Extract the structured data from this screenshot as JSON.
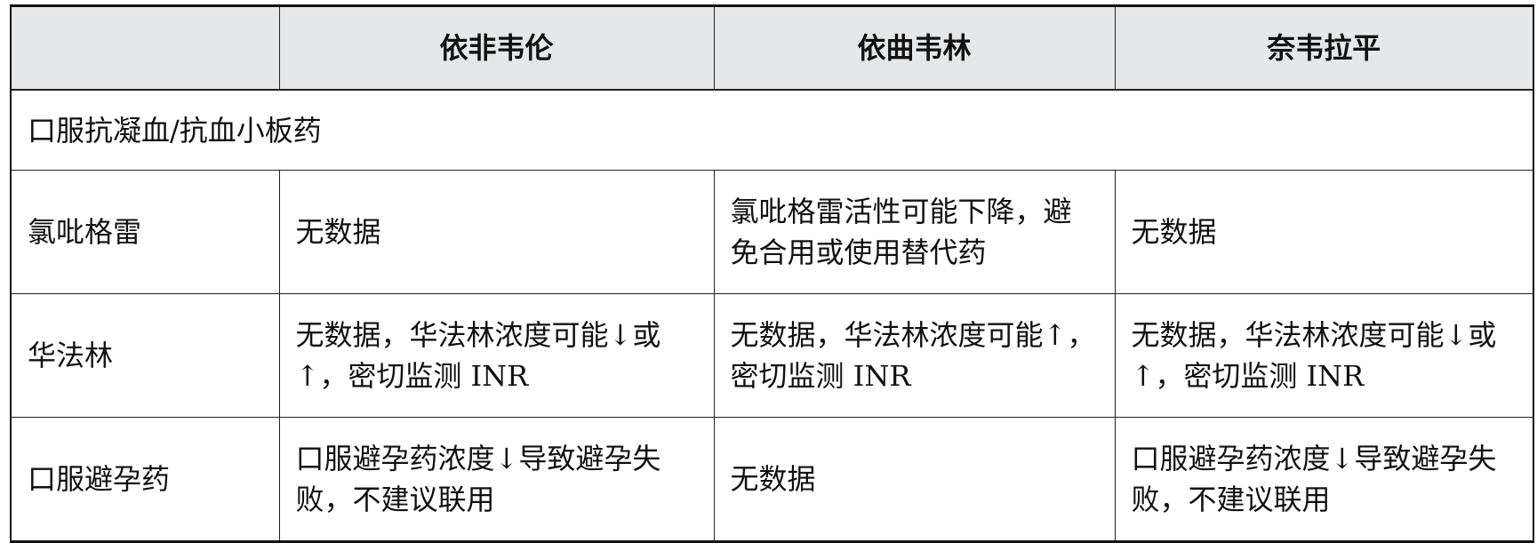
{
  "header": {
    "corner": "",
    "columns": [
      "依非韦伦",
      "依曲韦林",
      "奈韦拉平"
    ]
  },
  "section": "口服抗凝血/抗血小板药",
  "rows": [
    {
      "drug": "氯吡格雷",
      "cells": [
        "无数据",
        "氯吡格雷活性可能下降，避免合用或使用替代药",
        "无数据"
      ]
    },
    {
      "drug": "华法林",
      "cells": [
        "无数据，华法林浓度可能↓或↑，密切监测 INR",
        "无数据，华法林浓度可能↑，密切监测 INR",
        "无数据，华法林浓度可能↓或↑，密切监测 INR"
      ]
    },
    {
      "drug": "口服避孕药",
      "cells": [
        "口服避孕药浓度↓导致避孕失败，不建议联用",
        "无数据",
        "口服避孕药浓度↓导致避孕失败，不建议联用"
      ]
    }
  ]
}
